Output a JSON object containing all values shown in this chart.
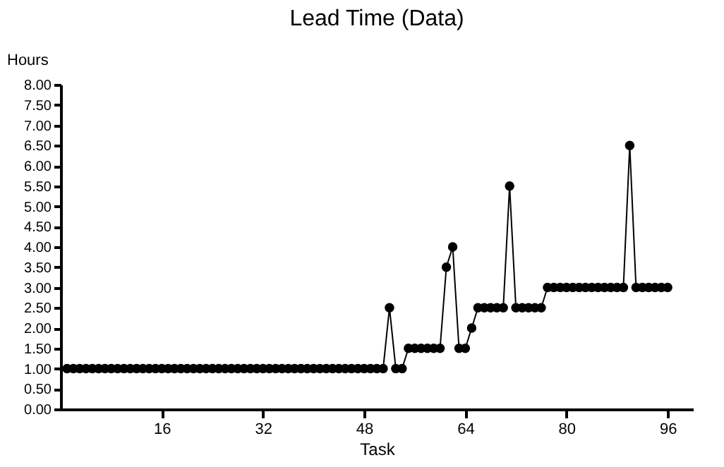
{
  "chart_data": {
    "type": "line",
    "title": "Lead Time (Data)",
    "xlabel": "Task",
    "ylabel": "Hours",
    "x": [
      1,
      2,
      3,
      4,
      5,
      6,
      7,
      8,
      9,
      10,
      11,
      12,
      13,
      14,
      15,
      16,
      17,
      18,
      19,
      20,
      21,
      22,
      23,
      24,
      25,
      26,
      27,
      28,
      29,
      30,
      31,
      32,
      33,
      34,
      35,
      36,
      37,
      38,
      39,
      40,
      41,
      42,
      43,
      44,
      45,
      46,
      47,
      48,
      49,
      50,
      51,
      52,
      53,
      54,
      55,
      56,
      57,
      58,
      59,
      60,
      61,
      62,
      63,
      64,
      65,
      66,
      67,
      68,
      69,
      70,
      71,
      72,
      73,
      74,
      75,
      76,
      77,
      78,
      79,
      80,
      81,
      82,
      83,
      84,
      85,
      86,
      87,
      88,
      89,
      90,
      91,
      92,
      93,
      94,
      95,
      96
    ],
    "series": [
      {
        "color": "#000000",
        "values": [
          1,
          1,
          1,
          1,
          1,
          1,
          1,
          1,
          1,
          1,
          1,
          1,
          1,
          1,
          1,
          1,
          1,
          1,
          1,
          1,
          1,
          1,
          1,
          1,
          1,
          1,
          1,
          1,
          1,
          1,
          1,
          1,
          1,
          1,
          1,
          1,
          1,
          1,
          1,
          1,
          1,
          1,
          1,
          1,
          1,
          1,
          1,
          1,
          1,
          1,
          1,
          2.5,
          1,
          1,
          1.5,
          1.5,
          1.5,
          1.5,
          1.5,
          1.5,
          3.5,
          4,
          1.5,
          1.5,
          2,
          2.5,
          2.5,
          2.5,
          2.5,
          2.5,
          5.5,
          2.5,
          2.5,
          2.5,
          2.5,
          2.5,
          3,
          3,
          3,
          3,
          3,
          3,
          3,
          3,
          3,
          3,
          3,
          3,
          3,
          6.5,
          3,
          3,
          3,
          3,
          3,
          3
        ]
      }
    ],
    "xlim": [
      0,
      100
    ],
    "xticks": [
      16,
      32,
      48,
      64,
      80,
      96
    ],
    "ylim": [
      0,
      8
    ],
    "yticks": [
      {
        "value": 0,
        "label": "0.00"
      },
      {
        "value": 0.5,
        "label": "0.50"
      },
      {
        "value": 1,
        "label": "1.00"
      },
      {
        "value": 1.5,
        "label": "1.50"
      },
      {
        "value": 2,
        "label": "2.00"
      },
      {
        "value": 2.5,
        "label": "2.50"
      },
      {
        "value": 3,
        "label": "3.00"
      },
      {
        "value": 3.5,
        "label": "3.50"
      },
      {
        "value": 4,
        "label": "4.00"
      },
      {
        "value": 4.5,
        "label": "4.50"
      },
      {
        "value": 5,
        "label": "5.00"
      },
      {
        "value": 5.5,
        "label": "5.50"
      },
      {
        "value": 6,
        "label": "6.00"
      },
      {
        "value": 6.5,
        "label": "6.50"
      },
      {
        "value": 7,
        "label": "7.00"
      },
      {
        "value": 7.5,
        "label": "7.50"
      },
      {
        "value": 8,
        "label": "8.00"
      }
    ],
    "grid": false,
    "marker": "circle",
    "line_style": "solid"
  }
}
